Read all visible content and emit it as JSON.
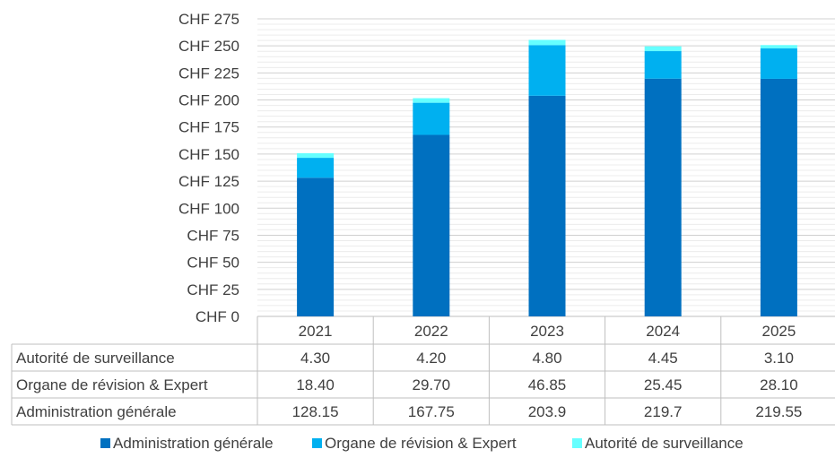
{
  "chart_data": {
    "type": "bar",
    "stacked": true,
    "categories": [
      "2021",
      "2022",
      "2023",
      "2024",
      "2025"
    ],
    "series": [
      {
        "name": "Administration générale",
        "color": "#0070c0",
        "values": [
          128.15,
          167.75,
          203.9,
          219.7,
          219.55
        ],
        "labels": [
          "128.15",
          "167.75",
          "203.9",
          "219.7",
          "219.55"
        ]
      },
      {
        "name": "Organe de révision & Expert",
        "color": "#00b0f0",
        "values": [
          18.4,
          29.7,
          46.85,
          25.45,
          28.1
        ],
        "labels": [
          "18.40",
          "29.70",
          "46.85",
          "25.45",
          "28.10"
        ]
      },
      {
        "name": "Autorité de surveillance",
        "color": "#66ffff",
        "values": [
          4.3,
          4.2,
          4.8,
          4.45,
          3.1
        ],
        "labels": [
          "4.30",
          "4.20",
          "4.80",
          "4.45",
          "3.10"
        ]
      }
    ],
    "y_ticks": [
      "CHF 0",
      "CHF 25",
      "CHF 50",
      "CHF 75",
      "CHF 100",
      "CHF 125",
      "CHF 150",
      "CHF 175",
      "CHF 200",
      "CHF 225",
      "CHF 250",
      "CHF 275"
    ],
    "ylim": [
      0,
      275
    ],
    "y_major_step": 25,
    "y_minor_step": 5,
    "data_table": true,
    "table_row_order": [
      "Autorité de surveillance",
      "Organe de révision & Expert",
      "Administration générale"
    ],
    "legend_position": "bottom",
    "grid": true
  }
}
